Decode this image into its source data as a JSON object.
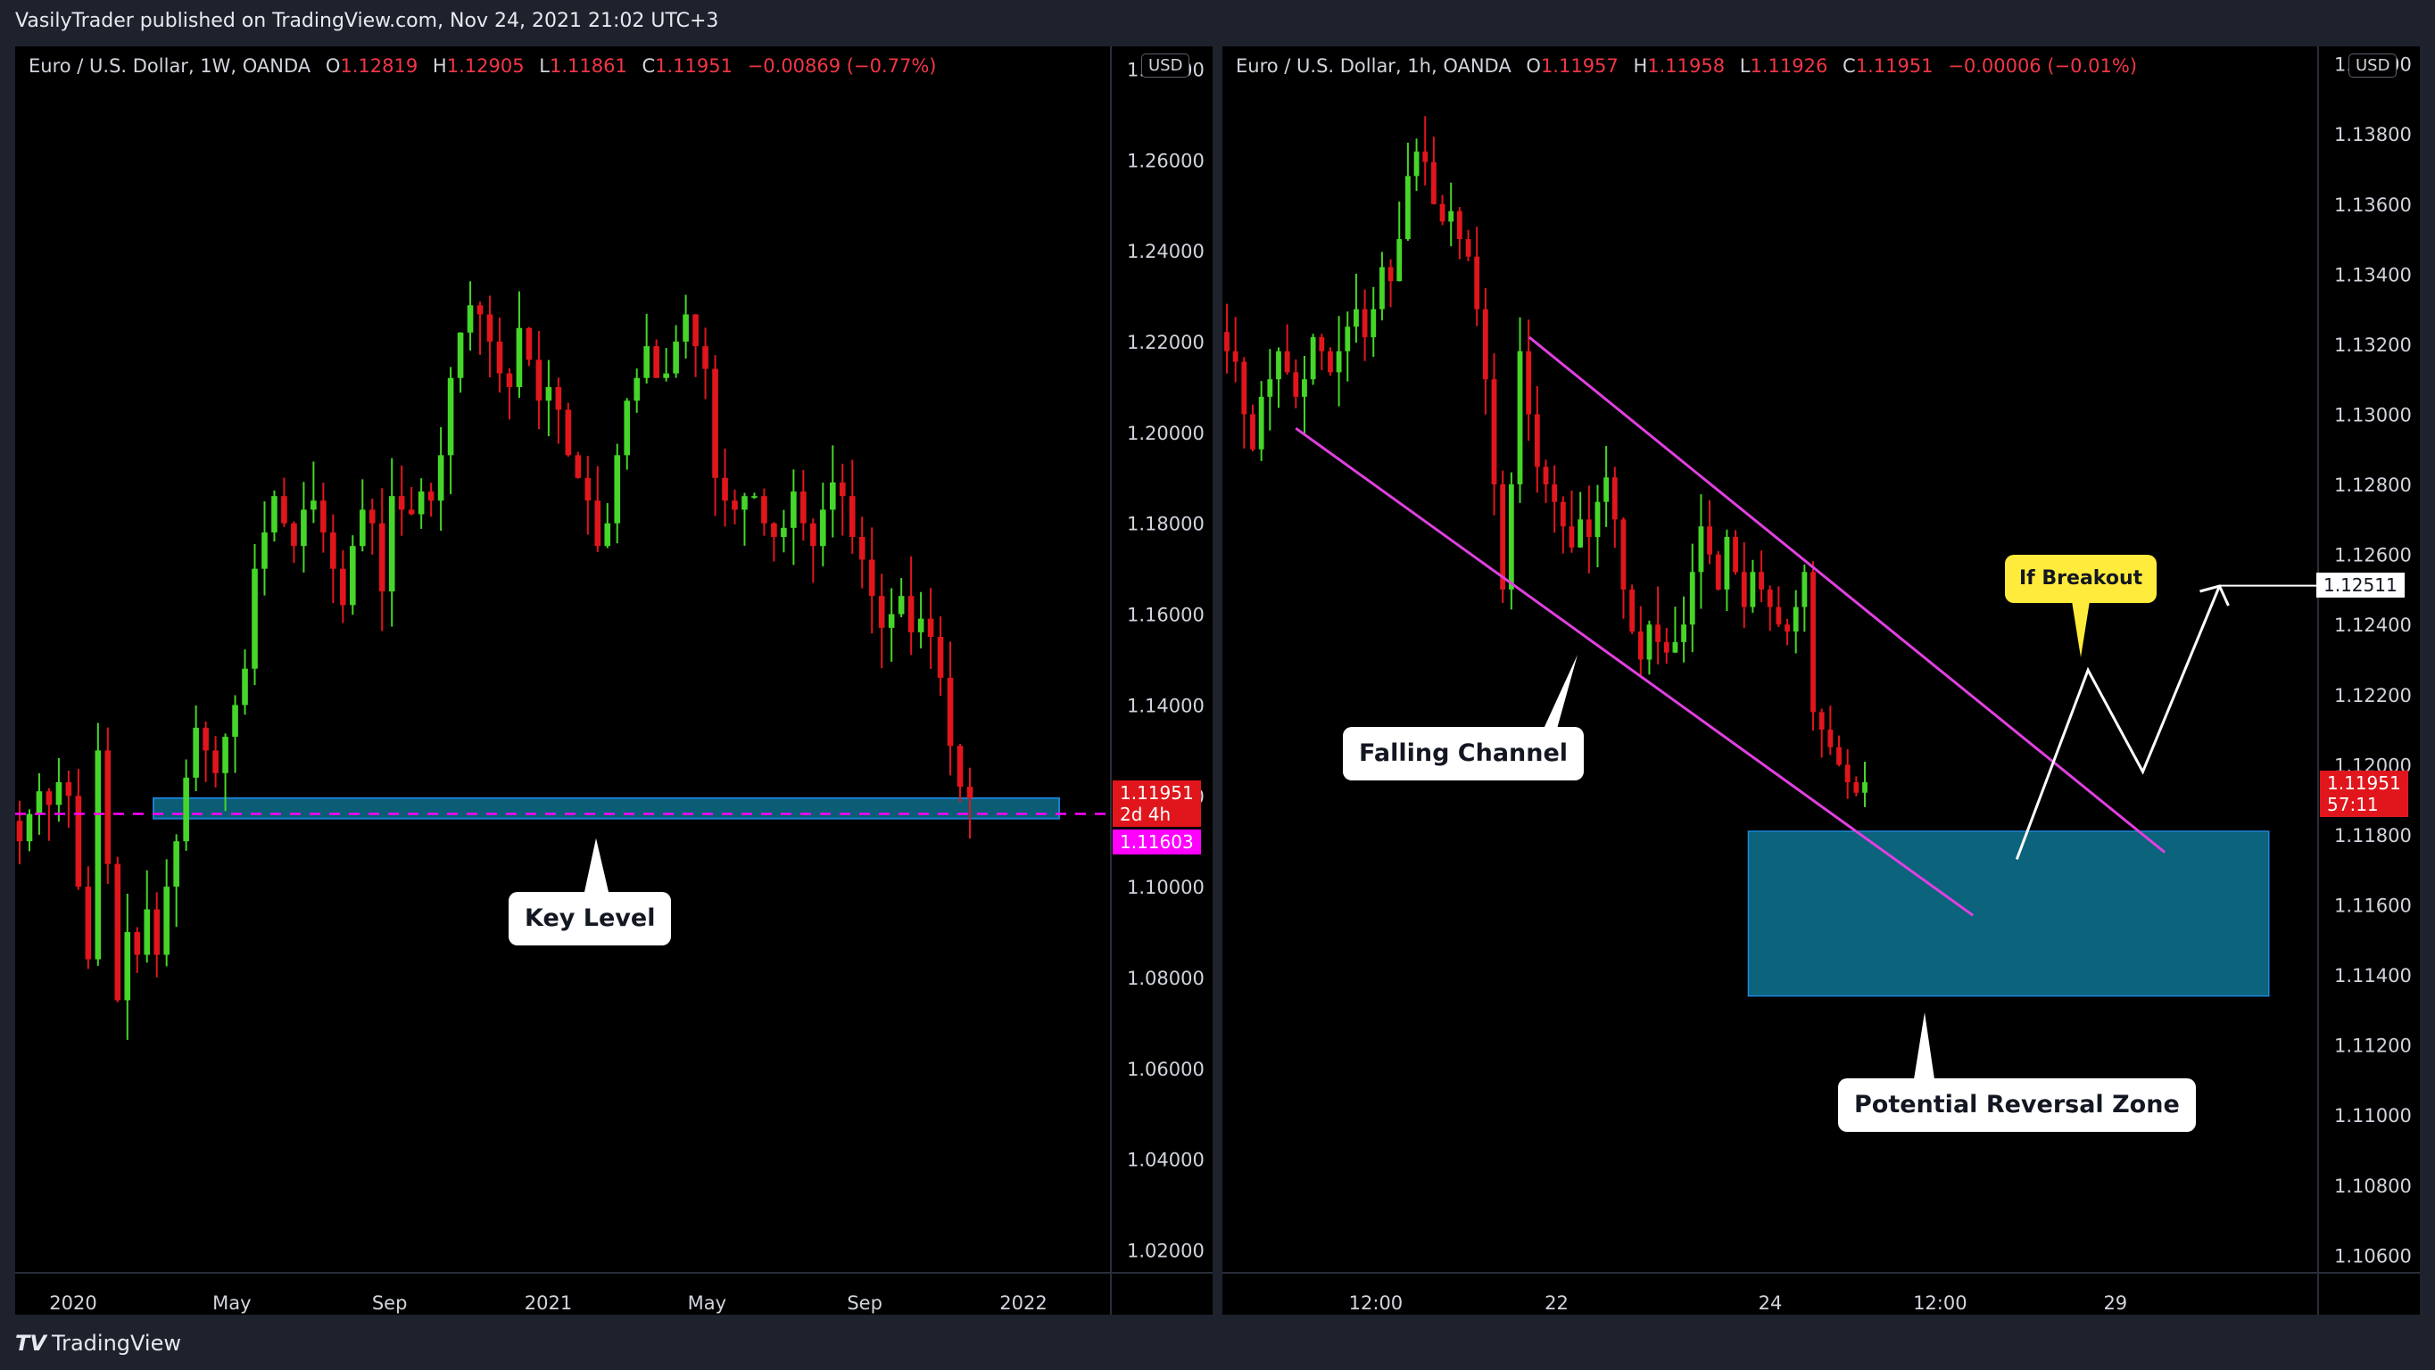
{
  "header": {
    "publisher": "VasilyTrader published on TradingView.com, Nov 24, 2021 21:02 UTC+3"
  },
  "footer": {
    "brand_mark": "TV",
    "brand": "TradingView"
  },
  "colors": {
    "up": "#45d629",
    "down": "#e0161c",
    "channel": "#e040e0",
    "zone": "#0d6e8a",
    "key_line": "#ff00ff"
  },
  "left": {
    "legend": {
      "symbol": "Euro / U.S. Dollar, 1W, OANDA",
      "o_label": "O",
      "o": "1.12819",
      "h_label": "H",
      "h": "1.12905",
      "l_label": "L",
      "l": "1.11861",
      "c_label": "C",
      "c": "1.11951",
      "change": "−0.00869 (−0.77%)"
    },
    "currency": "USD",
    "price_label": "1.11951",
    "countdown": "2d 4h",
    "level_label": "1.11603",
    "annotation": "Key Level"
  },
  "right": {
    "legend": {
      "symbol": "Euro / U.S. Dollar, 1h, OANDA",
      "o_label": "O",
      "o": "1.11957",
      "h_label": "H",
      "h": "1.11958",
      "l_label": "L",
      "l": "1.11926",
      "c_label": "C",
      "c": "1.11951",
      "change": "−0.00006 (−0.01%)"
    },
    "currency": "USD",
    "price_label": "1.11951",
    "countdown": "57:11",
    "target_label": "1.12511",
    "annotation_channel": "Falling Channel",
    "annotation_zone": "Potential Reversal Zone",
    "annotation_breakout": "If Breakout"
  },
  "chart_data": [
    {
      "type": "candlestick",
      "timeframe": "1W",
      "y_ticks": [
        1.02,
        1.04,
        1.06,
        1.08,
        1.1,
        1.12,
        1.14,
        1.16,
        1.18,
        1.2,
        1.22,
        1.24,
        1.26,
        1.28
      ],
      "ylim": [
        1.015,
        1.285
      ],
      "x_ticks": [
        {
          "label": "2020",
          "t": 0
        },
        {
          "label": "May",
          "t": 0.167
        },
        {
          "label": "Sep",
          "t": 0.333
        },
        {
          "label": "2021",
          "t": 0.5
        },
        {
          "label": "May",
          "t": 0.667
        },
        {
          "label": "Sep",
          "t": 0.833
        },
        {
          "label": "2022",
          "t": 1.0
        }
      ],
      "key_level": {
        "price": 1.11603,
        "zone": [
          1.115,
          1.1195
        ]
      },
      "path": [
        1.11,
        1.116,
        1.121,
        1.118,
        1.123,
        1.12,
        1.1,
        1.084,
        1.13,
        1.105,
        1.075,
        1.09,
        1.085,
        1.095,
        1.085,
        1.1,
        1.11,
        1.124,
        1.135,
        1.13,
        1.125,
        1.133,
        1.14,
        1.148,
        1.17,
        1.178,
        1.186,
        1.18,
        1.175,
        1.183,
        1.185,
        1.178,
        1.17,
        1.162,
        1.175,
        1.183,
        1.18,
        1.165,
        1.186,
        1.183,
        1.182,
        1.187,
        1.185,
        1.195,
        1.212,
        1.222,
        1.228,
        1.226,
        1.22,
        1.213,
        1.21,
        1.223,
        1.216,
        1.207,
        1.21,
        1.205,
        1.195,
        1.19,
        1.185,
        1.175,
        1.18,
        1.195,
        1.207,
        1.212,
        1.219,
        1.212,
        1.213,
        1.22,
        1.226,
        1.219,
        1.214,
        1.19,
        1.185,
        1.183,
        1.186,
        1.186,
        1.18,
        1.177,
        1.179,
        1.187,
        1.18,
        1.175,
        1.183,
        1.189,
        1.186,
        1.177,
        1.172,
        1.164,
        1.157,
        1.16,
        1.164,
        1.156,
        1.159,
        1.155,
        1.146,
        1.131,
        1.122,
        1.1195
      ]
    },
    {
      "type": "candlestick",
      "timeframe": "1h",
      "y_ticks": [
        1.106,
        1.108,
        1.11,
        1.112,
        1.114,
        1.116,
        1.118,
        1.12,
        1.122,
        1.124,
        1.126,
        1.128,
        1.13,
        1.132,
        1.134,
        1.136,
        1.138,
        1.14
      ],
      "ylim": [
        1.1055,
        1.1405
      ],
      "x_ticks": [
        {
          "label": "12:00",
          "t": 0.14
        },
        {
          "label": "22",
          "t": 0.305
        },
        {
          "label": "24",
          "t": 0.5
        },
        {
          "label": "12:00",
          "t": 0.655
        },
        {
          "label": "29",
          "t": 0.815
        }
      ],
      "channel": {
        "upper": [
          [
            0.28,
            1.1322
          ],
          [
            0.86,
            1.1175
          ]
        ],
        "lower": [
          [
            0.067,
            1.1296
          ],
          [
            0.685,
            1.1157
          ]
        ]
      },
      "reversal_zone": {
        "t": [
          0.48,
          0.955
        ],
        "price": [
          1.1134,
          1.1181
        ]
      },
      "projection": [
        [
          0.725,
          1.1173
        ],
        [
          0.79,
          1.1227
        ],
        [
          0.84,
          1.1198
        ],
        [
          0.91,
          1.1251
        ]
      ],
      "target": 1.12511,
      "path": [
        1.1318,
        1.1315,
        1.13,
        1.129,
        1.1305,
        1.131,
        1.1318,
        1.1312,
        1.1305,
        1.131,
        1.1322,
        1.1318,
        1.1312,
        1.1318,
        1.1325,
        1.133,
        1.1322,
        1.133,
        1.1342,
        1.1338,
        1.135,
        1.1368,
        1.1375,
        1.1372,
        1.136,
        1.1355,
        1.1358,
        1.135,
        1.1345,
        1.133,
        1.131,
        1.128,
        1.125,
        1.128,
        1.1318,
        1.13,
        1.1285,
        1.128,
        1.1275,
        1.1268,
        1.1262,
        1.127,
        1.1265,
        1.1275,
        1.1282,
        1.127,
        1.125,
        1.1238,
        1.123,
        1.124,
        1.1235,
        1.1232,
        1.1235,
        1.124,
        1.1255,
        1.1268,
        1.126,
        1.125,
        1.1265,
        1.1255,
        1.1245,
        1.1255,
        1.125,
        1.1245,
        1.124,
        1.1238,
        1.1245,
        1.1255,
        1.1215,
        1.121,
        1.1205,
        1.12,
        1.1195,
        1.1192,
        1.1195
      ]
    }
  ]
}
